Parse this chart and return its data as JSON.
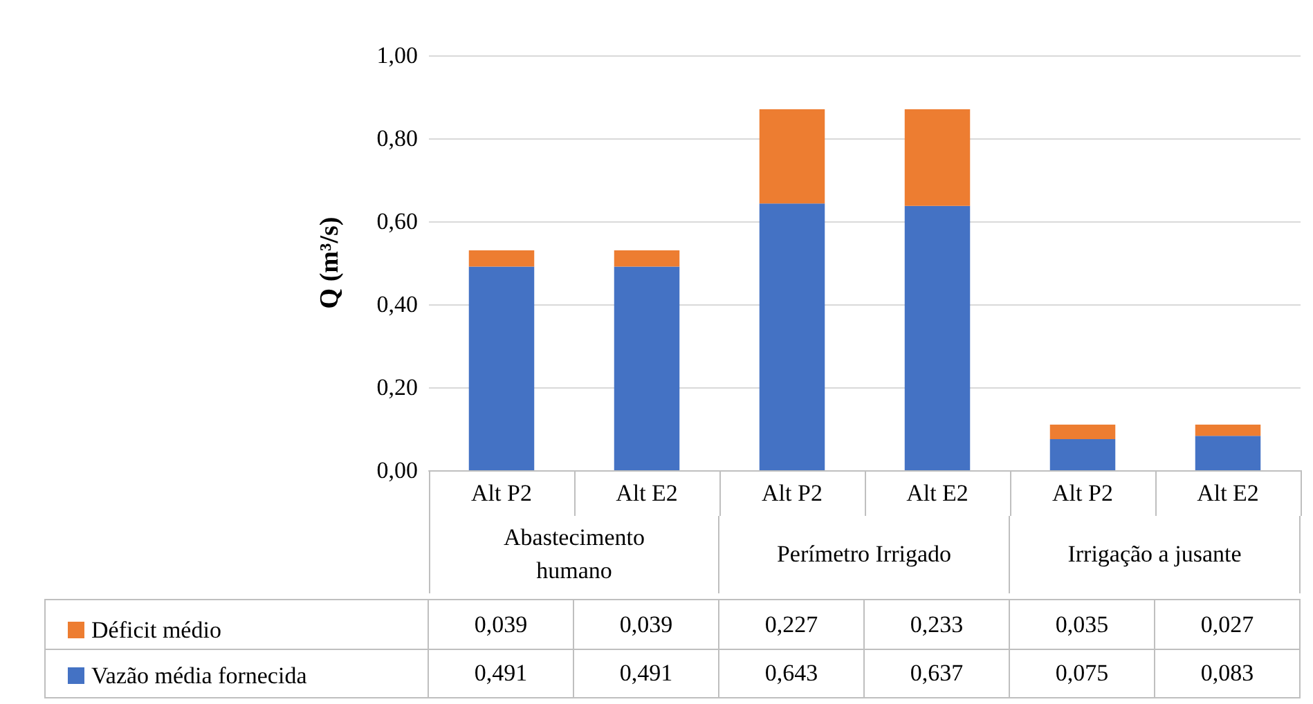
{
  "chart_data": {
    "type": "bar",
    "stacked": true,
    "ylabel": "Q (m³/s)",
    "categories": [
      "Alt P2",
      "Alt E2",
      "Alt P2",
      "Alt E2",
      "Alt P2",
      "Alt E2"
    ],
    "annotations": [
      "Abastecimento humano",
      "Perímetro Irrigado",
      "Irrigação a jusante"
    ],
    "series": [
      {
        "name": "Vazão média fornecida",
        "color": "#4472c4",
        "values": [
          0.491,
          0.491,
          0.643,
          0.637,
          0.075,
          0.083
        ],
        "value_labels": [
          "0,491",
          "0,491",
          "0,643",
          "0,637",
          "0,075",
          "0,083"
        ]
      },
      {
        "name": "Déficit médio",
        "color": "#ed7d31",
        "values": [
          0.039,
          0.039,
          0.227,
          0.233,
          0.035,
          0.027
        ],
        "value_labels": [
          "0,039",
          "0,039",
          "0,227",
          "0,233",
          "0,035",
          "0,027"
        ]
      }
    ],
    "ylim": [
      0,
      1
    ],
    "yticks": [
      {
        "value": 0,
        "label": "0,00"
      },
      {
        "value": 0.2,
        "label": "0,20"
      },
      {
        "value": 0.4,
        "label": "0,40"
      },
      {
        "value": 0.6,
        "label": "0,60"
      },
      {
        "value": 0.8,
        "label": "0,80"
      },
      {
        "value": 1,
        "label": "1,00"
      }
    ],
    "grid": "y",
    "legend": "bottom left"
  }
}
